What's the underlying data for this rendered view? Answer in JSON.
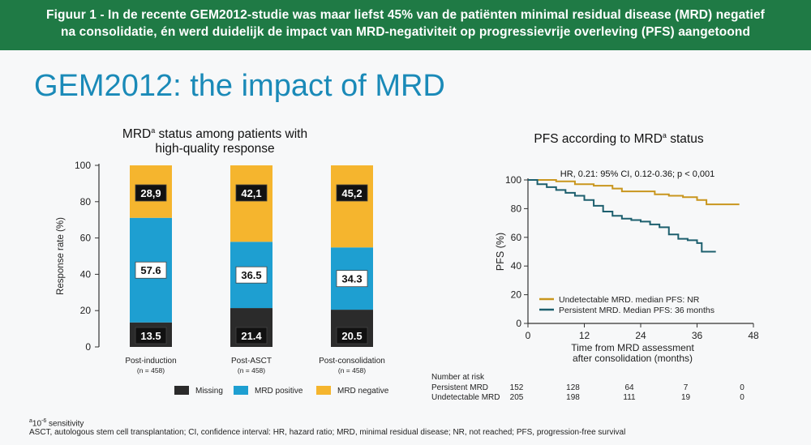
{
  "banner": {
    "line1": "Figuur 1 - In de recente GEM2012-studie was maar liefst 45% van de patiënten minimal residual disease (MRD) negatief",
    "line2": "na consolidatie, én werd duidelijk de impact van MRD-negativiteit op progressievrije overleving (PFS) aangetoond"
  },
  "slide_title": "GEM2012: the impact of MRD",
  "footnotes": {
    "note_a": "a10-6 sensitivity",
    "abbrev": "ASCT, autologous stem cell transplantation; CI, confidence interval: HR, hazard ratio; MRD, minimal residual disease; NR, not reached; PFS, progression-free survival"
  },
  "chart_data": [
    {
      "type": "bar",
      "stacked": true,
      "title": "MRDa status among patients with high-quality response",
      "ylabel": "Response rate (%)",
      "ylim": [
        0,
        100
      ],
      "yticks": [
        "0",
        "20",
        "40",
        "60",
        "80",
        "100"
      ],
      "categories": [
        "Post-induction",
        "Post-ASCT",
        "Post-consolidation"
      ],
      "category_n": [
        "(n = 458)",
        "(n = 458)",
        "(n = 458)"
      ],
      "series": [
        {
          "name": "Missing",
          "color": "#2b2b2b",
          "values": [
            13.5,
            21.4,
            20.5
          ],
          "labels": [
            "13.5",
            "21.4",
            "20.5"
          ]
        },
        {
          "name": "MRD positive",
          "color": "#1e9fd1",
          "values": [
            57.6,
            36.5,
            34.3
          ],
          "labels": [
            "57.6",
            "36.5",
            "34.3"
          ]
        },
        {
          "name": "MRD negative",
          "color": "#f5b52e",
          "values": [
            28.9,
            42.1,
            45.2
          ],
          "labels": [
            "28,9",
            "42,1",
            "45,2"
          ]
        }
      ]
    },
    {
      "type": "line",
      "subtype": "kaplan-meier",
      "title": "PFS according to MRDa status",
      "annotation": "HR, 0.21: 95% CI, 0.12-0.36; p < 0,001",
      "ylabel": "PFS (%)",
      "xlabel_line1": "Time from MRD assessment",
      "xlabel_line2": "after consolidation (months)",
      "xlim": [
        0,
        48
      ],
      "ylim": [
        0,
        100
      ],
      "xticks": [
        "0",
        "12",
        "24",
        "36",
        "48"
      ],
      "yticks": [
        "0",
        "20",
        "40",
        "60",
        "80",
        "100"
      ],
      "series": [
        {
          "name": "Undetectable MRD. median PFS: NR",
          "color": "#c9961e",
          "points": [
            [
              0,
              100
            ],
            [
              6,
              99
            ],
            [
              10,
              97
            ],
            [
              14,
              96
            ],
            [
              18,
              94
            ],
            [
              20,
              92
            ],
            [
              24,
              92
            ],
            [
              27,
              90
            ],
            [
              30,
              89
            ],
            [
              33,
              88
            ],
            [
              36,
              86
            ],
            [
              38,
              83
            ],
            [
              45,
              83
            ]
          ]
        },
        {
          "name": "Persistent MRD. Median PFS: 36 months",
          "color": "#1d5f6e",
          "points": [
            [
              0,
              100
            ],
            [
              2,
              97
            ],
            [
              4,
              95
            ],
            [
              6,
              93
            ],
            [
              8,
              91
            ],
            [
              10,
              89
            ],
            [
              12,
              86
            ],
            [
              14,
              82
            ],
            [
              16,
              78
            ],
            [
              18,
              75
            ],
            [
              20,
              73
            ],
            [
              22,
              72
            ],
            [
              24,
              71
            ],
            [
              26,
              69
            ],
            [
              28,
              67
            ],
            [
              30,
              62
            ],
            [
              32,
              59
            ],
            [
              34,
              58
            ],
            [
              36,
              56
            ],
            [
              37,
              50
            ],
            [
              40,
              50
            ]
          ]
        }
      ],
      "risk_table": {
        "header": "Number at risk",
        "rows": [
          {
            "label": "Persistent MRD",
            "values": [
              "152",
              "128",
              "64",
              "7",
              "0"
            ]
          },
          {
            "label": "Undetectable MRD",
            "values": [
              "205",
              "198",
              "111",
              "19",
              "0"
            ]
          }
        ]
      }
    }
  ]
}
